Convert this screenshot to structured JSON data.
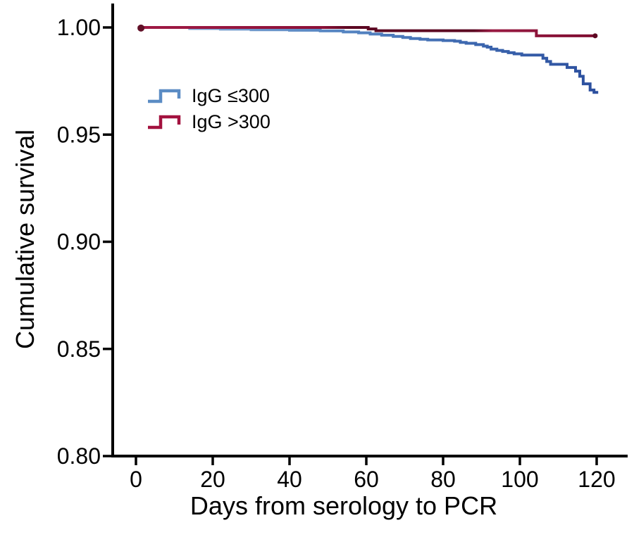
{
  "figure": {
    "background": "#ffffff",
    "axis_color": "#000000",
    "text_color": "#000000"
  },
  "chart_data": {
    "type": "line",
    "variant": "kaplan_meier_step",
    "title": "",
    "xlabel": "Days from serology to PCR",
    "ylabel": "Cumulative survival",
    "xlim": [
      0,
      120
    ],
    "ylim": [
      0.8,
      1.0
    ],
    "x_ticks": [
      0,
      20,
      40,
      60,
      80,
      100,
      120
    ],
    "y_ticks": [
      {
        "value": 1.0,
        "label": "1.00"
      },
      {
        "value": 0.95,
        "label": "0.95"
      },
      {
        "value": 0.9,
        "label": "0.90"
      },
      {
        "value": 0.85,
        "label": "0.85"
      },
      {
        "value": 0.8,
        "label": "0.80"
      }
    ],
    "grid": false,
    "legend_position": "inside-upper-left",
    "series": [
      {
        "name": "IgG ≤300",
        "legend_color": "#5b8cc4",
        "gradient": [
          [
            "0%",
            "#88add6"
          ],
          [
            "45%",
            "#5585c2"
          ],
          [
            "75%",
            "#3a64ad"
          ],
          [
            "100%",
            "#2c4f9e"
          ]
        ],
        "end_t": 120.4,
        "points": [
          [
            0.5,
            1.0
          ],
          [
            14,
            0.9995
          ],
          [
            22,
            0.9992
          ],
          [
            30,
            0.9989
          ],
          [
            40,
            0.9987
          ],
          [
            48,
            0.9984
          ],
          [
            54,
            0.9979
          ],
          [
            58,
            0.9975
          ],
          [
            61,
            0.9969
          ],
          [
            64,
            0.9964
          ],
          [
            67,
            0.9958
          ],
          [
            69.5,
            0.9953
          ],
          [
            71.5,
            0.9948
          ],
          [
            74,
            0.9945
          ],
          [
            76,
            0.9942
          ],
          [
            80,
            0.9939
          ],
          [
            83,
            0.9936
          ],
          [
            84.5,
            0.993
          ],
          [
            86,
            0.9926
          ],
          [
            88.5,
            0.992
          ],
          [
            90.5,
            0.9913
          ],
          [
            91.5,
            0.9908
          ],
          [
            92.5,
            0.9899
          ],
          [
            94,
            0.9893
          ],
          [
            95.5,
            0.9888
          ],
          [
            97,
            0.9882
          ],
          [
            98.5,
            0.9877
          ],
          [
            100.5,
            0.9871
          ],
          [
            106,
            0.9856
          ],
          [
            107,
            0.9841
          ],
          [
            108,
            0.9828
          ],
          [
            112.3,
            0.9813
          ],
          [
            114.5,
            0.9796
          ],
          [
            115.6,
            0.9772
          ],
          [
            116.5,
            0.9737
          ],
          [
            118.3,
            0.9708
          ],
          [
            119.3,
            0.9697
          ]
        ]
      },
      {
        "name": "IgG >300",
        "legend_color": "#a3123f",
        "gradient": [
          [
            "0%",
            "#a01a45"
          ],
          [
            "40%",
            "#8c1038"
          ],
          [
            "46%",
            "#5c0722"
          ],
          [
            "73%",
            "#5c0722"
          ],
          [
            "77%",
            "#991a42"
          ],
          [
            "100%",
            "#7d0c30"
          ]
        ],
        "end_t": 120.2,
        "points": [
          [
            0.5,
            1.0
          ],
          [
            60.5,
            0.9993
          ],
          [
            62.5,
            0.9985
          ],
          [
            104.3,
            0.9961
          ]
        ]
      }
    ],
    "markers": [
      {
        "name": "curve-start-dot",
        "t": 1.3,
        "value": 0.9997,
        "r": 5,
        "color": "#611027"
      },
      {
        "name": "red-curve-end-dot",
        "t": 119.6,
        "value": 0.9961,
        "r": 3.5,
        "color": "#5c0722"
      }
    ]
  }
}
